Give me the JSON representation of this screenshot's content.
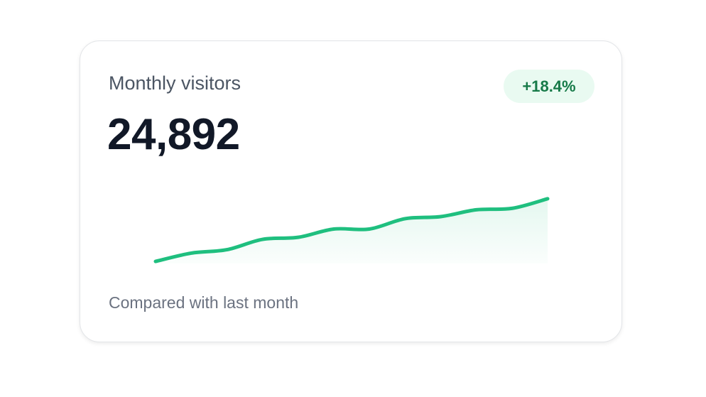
{
  "card": {
    "title": "Monthly visitors",
    "value": "24,892",
    "change": "+18.4%",
    "footnote": "Compared with last month"
  },
  "chart_data": {
    "type": "line",
    "values": [
      3,
      15,
      20,
      35,
      38,
      50,
      50,
      65,
      68,
      78,
      80,
      94
    ],
    "color": "#1fbf7f"
  }
}
